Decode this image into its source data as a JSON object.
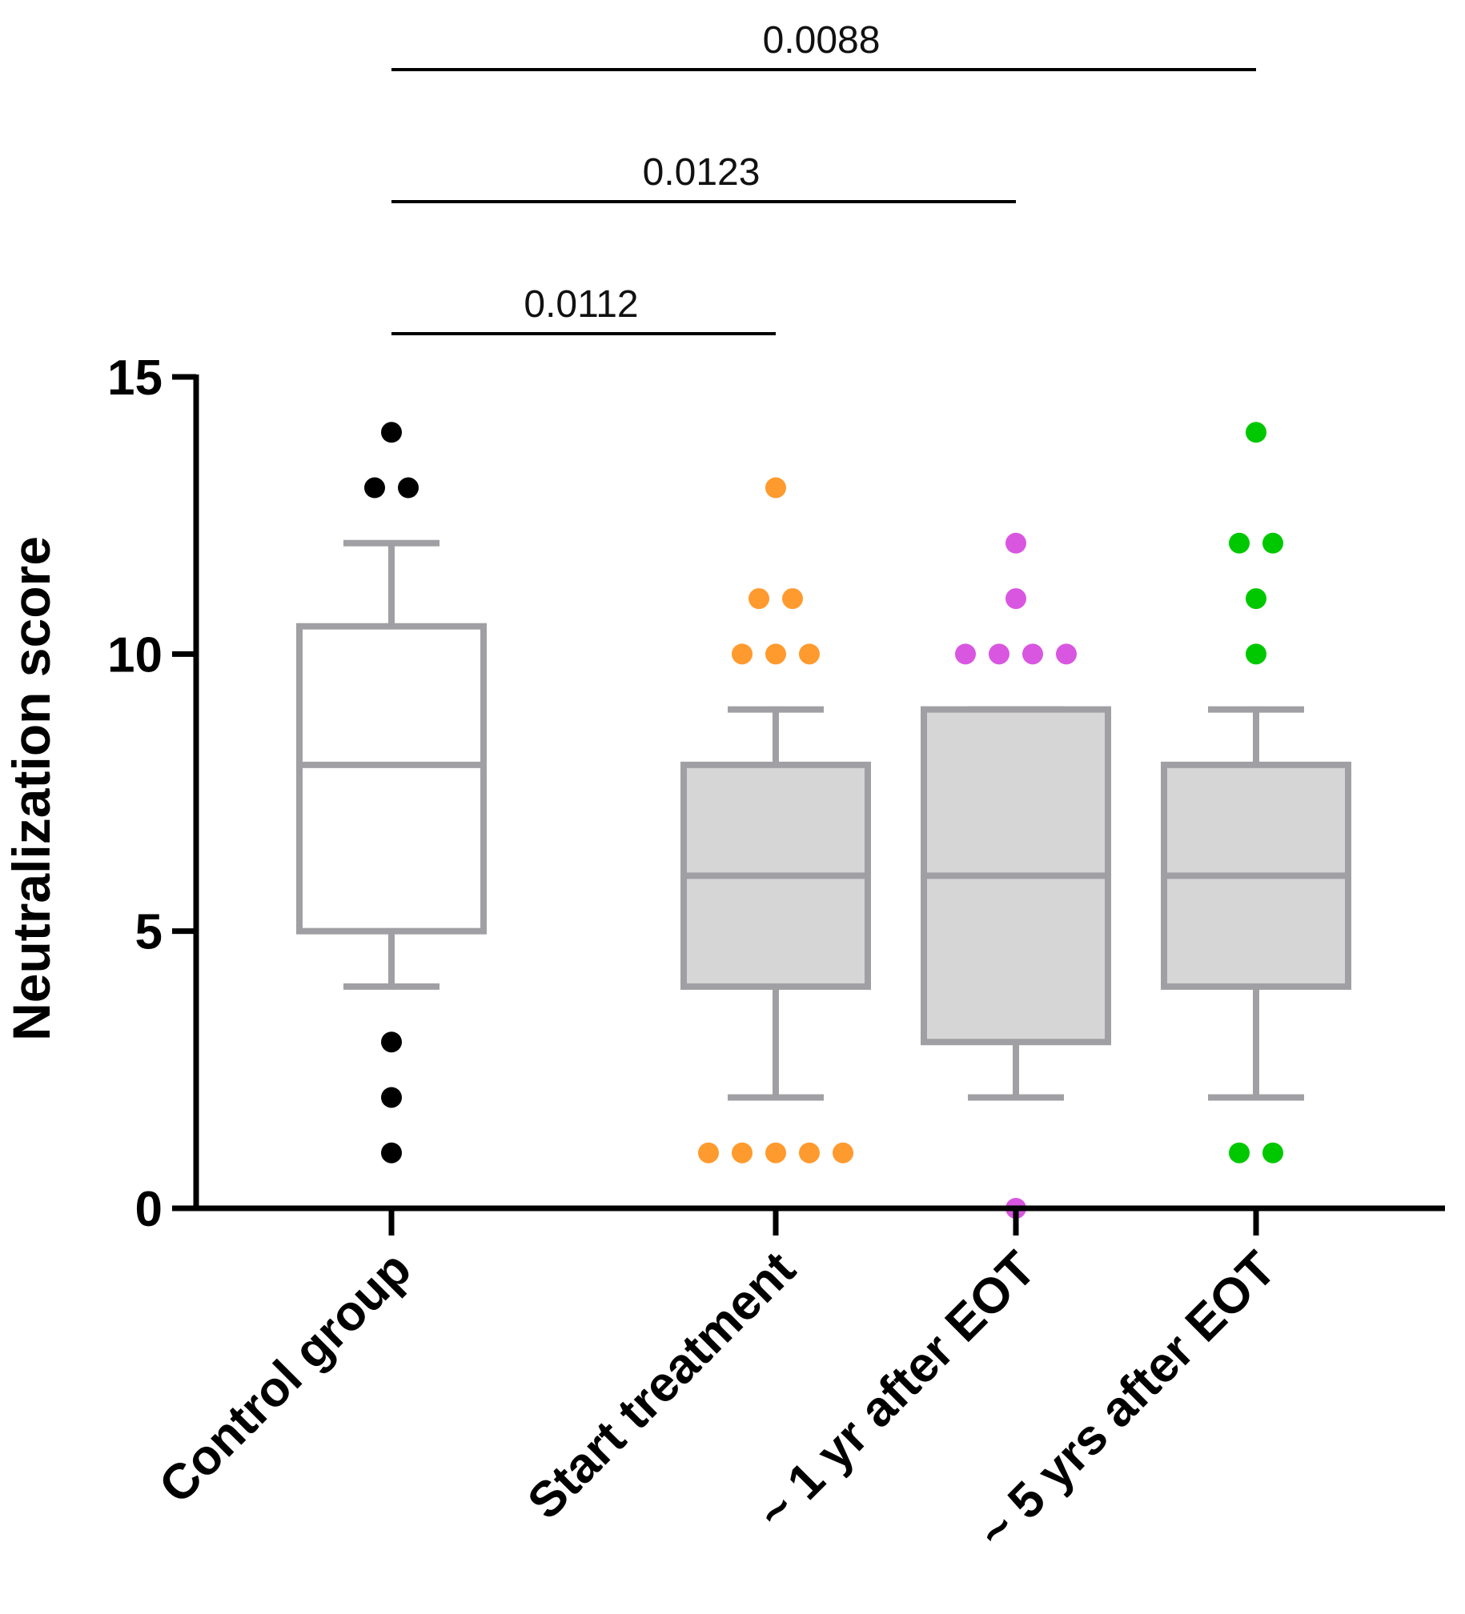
{
  "chart_data": {
    "type": "box",
    "title": "",
    "xlabel": "",
    "ylabel": "Neutralization score",
    "ylim": [
      0,
      15
    ],
    "yticks": [
      0,
      5,
      10,
      15
    ],
    "ytick_labels": [
      "0",
      "5",
      "10",
      "15"
    ],
    "categories": [
      "Control group",
      "Start treatment",
      "~ 1 yr after EOT",
      "~ 5 yrs after EOT"
    ],
    "box_colors": [
      "#ffffff",
      "#d6d6d6",
      "#d6d6d6",
      "#d6d6d6"
    ],
    "box_edge_color": "#a0a0a4",
    "point_colors": [
      "#000000",
      "#ff9a2e",
      "#d957e0",
      "#00c800"
    ],
    "boxes": [
      {
        "category": "Control group",
        "whisker_low": 4,
        "q1": 5,
        "median": 8,
        "q3": 10.5,
        "whisker_high": 12
      },
      {
        "category": "Start treatment",
        "whisker_low": 2,
        "q1": 4,
        "median": 6,
        "q3": 8,
        "whisker_high": 9
      },
      {
        "category": "~ 1 yr after EOT",
        "whisker_low": 2,
        "q1": 3,
        "median": 6,
        "q3": 9,
        "whisker_high": 9
      },
      {
        "category": "~ 5 yrs after EOT",
        "whisker_low": 2,
        "q1": 4,
        "median": 6,
        "q3": 8,
        "whisker_high": 9
      }
    ],
    "outliers": [
      [
        14,
        13,
        13,
        3,
        2,
        1
      ],
      [
        13,
        11,
        11,
        10,
        10,
        10,
        1,
        1,
        1,
        1,
        1
      ],
      [
        12,
        11,
        10,
        10,
        10,
        10,
        0
      ],
      [
        14,
        12,
        12,
        11,
        10,
        1,
        1
      ]
    ],
    "comparisons": [
      {
        "from": "Control group",
        "to": "Start treatment",
        "p_value": "0.0112"
      },
      {
        "from": "Control group",
        "to": "~ 1 yr after EOT",
        "p_value": "0.0123"
      },
      {
        "from": "Control group",
        "to": "~ 5 yrs after EOT",
        "p_value": "0.0088"
      }
    ]
  }
}
